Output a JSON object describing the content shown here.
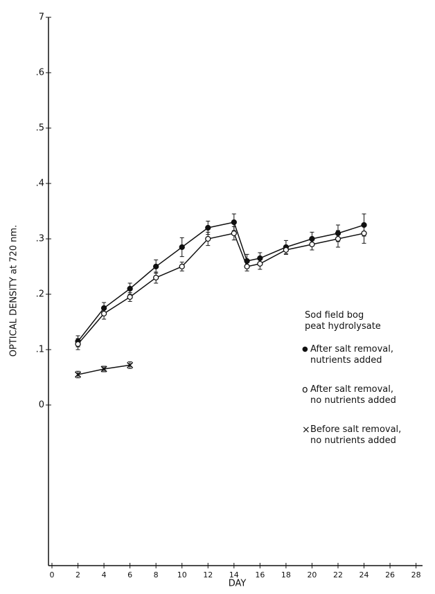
{
  "chart_data": {
    "type": "line",
    "xlabel": "DAY",
    "ylabel": "OPTICAL DENSITY at 720 nm.",
    "legend_title": "Sod field bog\npeat hydrolysate",
    "xlim": [
      0,
      28.5
    ],
    "ylim": [
      -0.29,
      0.7
    ],
    "xticks": [
      0,
      2,
      4,
      6,
      8,
      10,
      12,
      14,
      16,
      18,
      20,
      22,
      24,
      26,
      28
    ],
    "yticks": [
      0,
      {
        "value": 0.1,
        "label": ".1"
      },
      {
        "value": 0.2,
        "label": ".2"
      },
      {
        "value": 0.3,
        "label": ".3"
      },
      {
        "value": 0.4,
        "label": ".4"
      },
      {
        "value": 0.5,
        "label": ".5"
      },
      {
        "value": 0.6,
        "label": ".6"
      },
      {
        "value": 0.7,
        "label": "7"
      }
    ],
    "series": [
      {
        "name": "After salt removal,\nnutrients added",
        "color": "#111111",
        "marker": "filled-circle",
        "x": [
          2,
          4,
          6,
          8,
          10,
          12,
          14,
          15,
          16,
          18,
          20,
          22,
          24
        ],
        "values": [
          0.115,
          0.175,
          0.21,
          0.25,
          0.285,
          0.32,
          0.33,
          0.26,
          0.265,
          0.285,
          0.3,
          0.31,
          0.325
        ],
        "errors": [
          0.01,
          0.01,
          0.01,
          0.012,
          0.017,
          0.012,
          0.015,
          0.012,
          0.01,
          0.012,
          0.012,
          0.015,
          0.02
        ]
      },
      {
        "name": "After salt removal,\nno nutrients added",
        "color": "#111111",
        "marker": "open-circle",
        "x": [
          2,
          4,
          6,
          8,
          10,
          12,
          14,
          15,
          16,
          18,
          20,
          22,
          24
        ],
        "values": [
          0.11,
          0.165,
          0.195,
          0.23,
          0.25,
          0.3,
          0.31,
          0.25,
          0.255,
          0.28,
          0.29,
          0.3,
          0.31
        ],
        "errors": [
          0.01,
          0.01,
          0.008,
          0.01,
          0.008,
          0.012,
          0.012,
          0.008,
          0.01,
          0.008,
          0.01,
          0.015,
          0.018
        ]
      },
      {
        "name": "Before salt removal,\nno nutrients added",
        "color": "#111111",
        "marker": "x",
        "x": [
          2,
          4,
          6
        ],
        "values": [
          0.055,
          0.065,
          0.072
        ],
        "errors": [
          0.006,
          0.005,
          0.006
        ]
      }
    ]
  }
}
